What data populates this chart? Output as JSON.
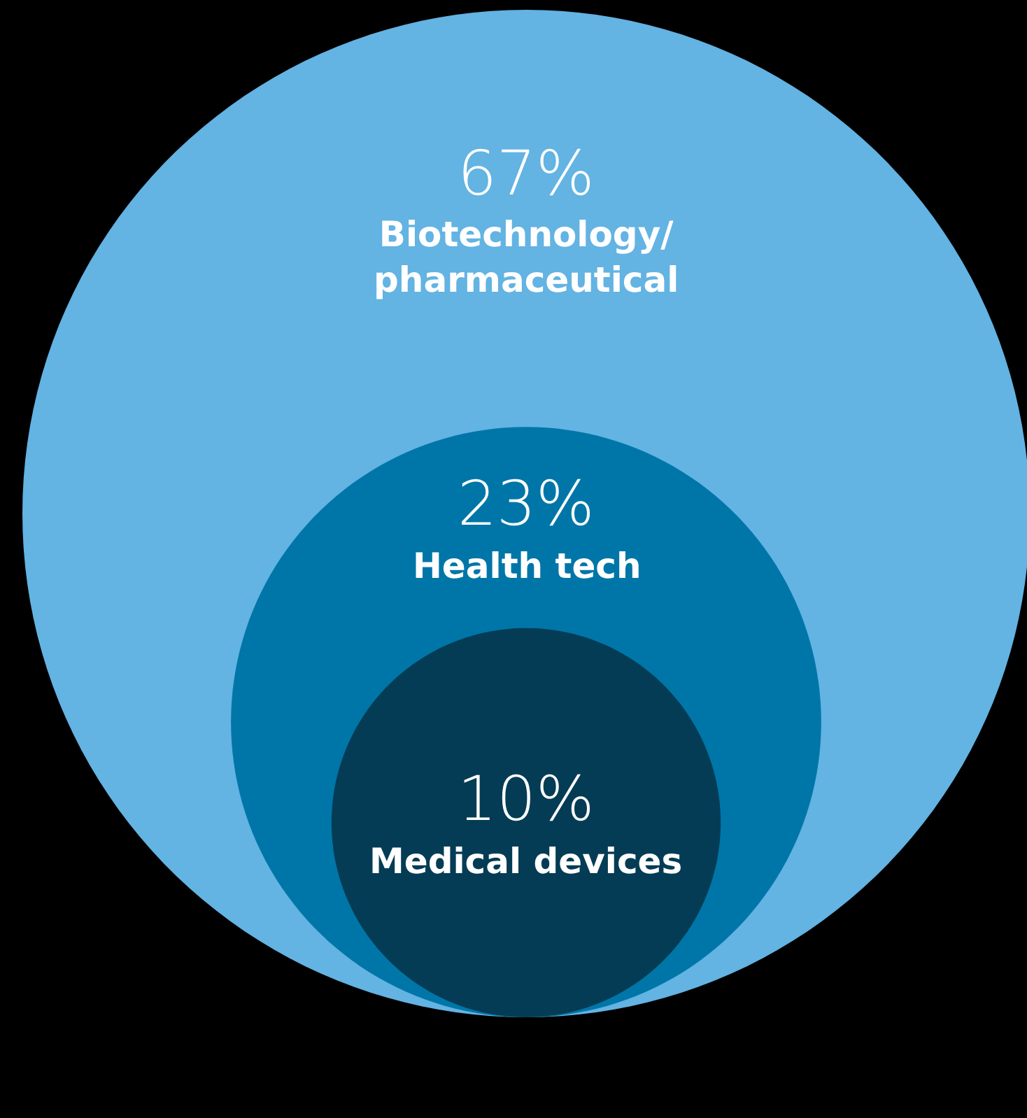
{
  "chart_data": {
    "type": "other",
    "categories": [
      "Biotechnology/pharmaceutical",
      "Health tech",
      "Medical devices"
    ],
    "values": [
      67,
      23,
      10
    ],
    "value_labels": [
      "67%",
      "23%",
      "10%"
    ],
    "colors": [
      "#63b3e3",
      "#0076a8",
      "#053c55"
    ]
  }
}
